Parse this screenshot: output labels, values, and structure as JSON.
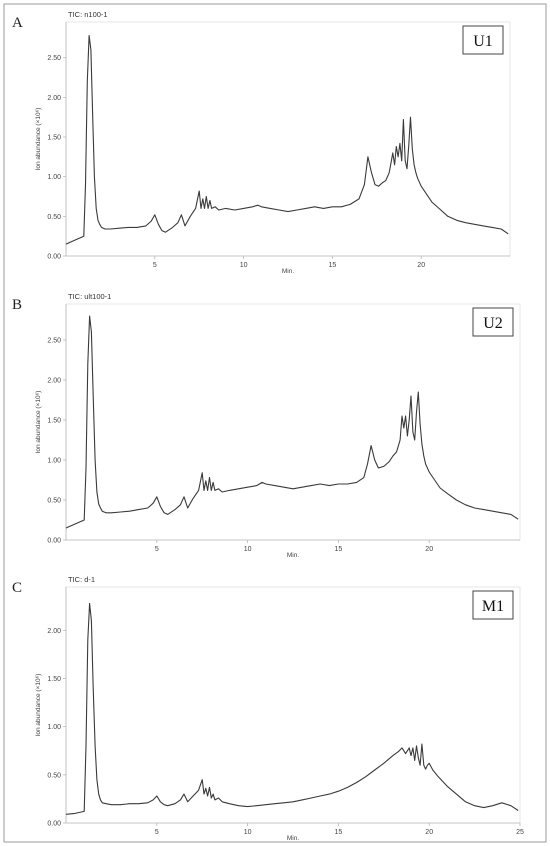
{
  "chart_data": [
    {
      "type": "line",
      "panel_letter": "A",
      "title": "TIC: n100-1",
      "sample_label": "U1",
      "xlabel": "Min.",
      "ylabel": "Ion abundance (×10⁶)",
      "xlim": [
        0,
        25
      ],
      "ylim": [
        0,
        2.95
      ],
      "xticks": [
        5,
        10,
        15,
        20
      ],
      "xtick_labels": [
        "5",
        "10",
        "15",
        "20"
      ],
      "yticks": [
        0,
        0.5,
        1.0,
        1.5,
        2.0,
        2.5
      ],
      "ytick_labels": [
        "0.00",
        "0.50",
        "1.00",
        "1.50",
        "2.00",
        "2.50"
      ],
      "series": [
        {
          "x": [
            0,
            0.5,
            1.0,
            1.1,
            1.2,
            1.3,
            1.4,
            1.5,
            1.6,
            1.7,
            1.8,
            1.9,
            2.0,
            2.2,
            2.5,
            3.0,
            3.5,
            4.0,
            4.5,
            4.8,
            5.0,
            5.2,
            5.4,
            5.6,
            6.0,
            6.3,
            6.5,
            6.7,
            7.0,
            7.3,
            7.5,
            7.6,
            7.7,
            7.8,
            7.9,
            8.0,
            8.1,
            8.2,
            8.4,
            8.6,
            9.0,
            9.5,
            10.0,
            10.5,
            10.8,
            11.0,
            11.5,
            12.0,
            12.5,
            13.0,
            13.5,
            14.0,
            14.5,
            15.0,
            15.5,
            16.0,
            16.5,
            16.8,
            17.0,
            17.2,
            17.4,
            17.6,
            17.8,
            18.0,
            18.2,
            18.4,
            18.5,
            18.6,
            18.7,
            18.8,
            18.9,
            19.0,
            19.1,
            19.2,
            19.3,
            19.4,
            19.5,
            19.6,
            19.7,
            19.8,
            20.0,
            20.3,
            20.6,
            21.0,
            21.5,
            22.0,
            22.5,
            23.0,
            23.5,
            24.0,
            24.5,
            24.9
          ],
          "y": [
            0.15,
            0.2,
            0.25,
            0.9,
            2.2,
            2.78,
            2.6,
            1.8,
            1.0,
            0.6,
            0.45,
            0.4,
            0.36,
            0.34,
            0.34,
            0.35,
            0.36,
            0.36,
            0.38,
            0.44,
            0.52,
            0.4,
            0.32,
            0.3,
            0.36,
            0.42,
            0.52,
            0.38,
            0.5,
            0.6,
            0.82,
            0.6,
            0.72,
            0.6,
            0.75,
            0.6,
            0.7,
            0.6,
            0.62,
            0.58,
            0.6,
            0.58,
            0.6,
            0.62,
            0.64,
            0.62,
            0.6,
            0.58,
            0.56,
            0.58,
            0.6,
            0.62,
            0.6,
            0.62,
            0.62,
            0.65,
            0.72,
            0.9,
            1.25,
            1.05,
            0.9,
            0.88,
            0.92,
            0.95,
            1.05,
            1.3,
            1.15,
            1.38,
            1.25,
            1.42,
            1.2,
            1.72,
            1.2,
            1.1,
            1.4,
            1.75,
            1.35,
            1.15,
            1.05,
            0.98,
            0.88,
            0.78,
            0.68,
            0.6,
            0.5,
            0.45,
            0.42,
            0.4,
            0.38,
            0.36,
            0.34,
            0.28
          ]
        }
      ]
    },
    {
      "type": "line",
      "panel_letter": "B",
      "title": "TIC: ult100-1",
      "sample_label": "U2",
      "xlabel": "Min.",
      "ylabel": "Ion abundance (×10⁶)",
      "xlim": [
        0,
        25
      ],
      "ylim": [
        0,
        2.95
      ],
      "xticks": [
        5,
        10,
        15,
        20
      ],
      "xtick_labels": [
        "5",
        "10",
        "15",
        "20"
      ],
      "yticks": [
        0,
        0.5,
        1.0,
        1.5,
        2.0,
        2.5
      ],
      "ytick_labels": [
        "0.00",
        "0.50",
        "1.00",
        "1.50",
        "2.00",
        "2.50"
      ],
      "series": [
        {
          "x": [
            0,
            0.5,
            1.0,
            1.1,
            1.2,
            1.3,
            1.4,
            1.5,
            1.6,
            1.7,
            1.8,
            1.9,
            2.0,
            2.2,
            2.5,
            3.0,
            3.5,
            4.0,
            4.5,
            4.8,
            5.0,
            5.2,
            5.4,
            5.6,
            6.0,
            6.3,
            6.5,
            6.7,
            7.0,
            7.3,
            7.5,
            7.6,
            7.7,
            7.8,
            7.9,
            8.0,
            8.1,
            8.2,
            8.4,
            8.6,
            9.0,
            9.5,
            10.0,
            10.5,
            10.8,
            11.0,
            11.5,
            12.0,
            12.5,
            13.0,
            13.5,
            14.0,
            14.5,
            15.0,
            15.5,
            16.0,
            16.4,
            16.6,
            16.8,
            17.0,
            17.2,
            17.5,
            17.8,
            18.0,
            18.2,
            18.4,
            18.5,
            18.6,
            18.7,
            18.8,
            18.9,
            19.0,
            19.1,
            19.2,
            19.3,
            19.4,
            19.5,
            19.6,
            19.7,
            19.8,
            20.0,
            20.3,
            20.6,
            21.0,
            21.5,
            22.0,
            22.5,
            23.0,
            23.5,
            24.0,
            24.5,
            24.9
          ],
          "y": [
            0.15,
            0.2,
            0.25,
            0.9,
            2.2,
            2.8,
            2.6,
            1.8,
            1.0,
            0.6,
            0.45,
            0.4,
            0.36,
            0.34,
            0.34,
            0.35,
            0.36,
            0.38,
            0.4,
            0.46,
            0.54,
            0.42,
            0.34,
            0.32,
            0.38,
            0.44,
            0.54,
            0.4,
            0.52,
            0.62,
            0.84,
            0.62,
            0.74,
            0.62,
            0.78,
            0.62,
            0.72,
            0.62,
            0.64,
            0.6,
            0.62,
            0.64,
            0.66,
            0.68,
            0.72,
            0.7,
            0.68,
            0.66,
            0.64,
            0.66,
            0.68,
            0.7,
            0.68,
            0.7,
            0.7,
            0.72,
            0.78,
            0.95,
            1.18,
            1.0,
            0.9,
            0.92,
            0.98,
            1.05,
            1.1,
            1.25,
            1.55,
            1.4,
            1.55,
            1.3,
            1.5,
            1.8,
            1.35,
            1.25,
            1.6,
            1.85,
            1.45,
            1.2,
            1.05,
            0.95,
            0.85,
            0.75,
            0.65,
            0.58,
            0.5,
            0.44,
            0.4,
            0.38,
            0.36,
            0.34,
            0.32,
            0.26
          ]
        }
      ]
    },
    {
      "type": "line",
      "panel_letter": "C",
      "title": "TIC: d-1",
      "sample_label": "M1",
      "xlabel": "Min.",
      "ylabel": "Ion abundance (×10⁶)",
      "xlim": [
        0,
        25
      ],
      "ylim": [
        0,
        2.45
      ],
      "xticks": [
        5,
        10,
        15,
        20,
        25
      ],
      "xtick_labels": [
        "5",
        "10",
        "15",
        "20",
        "25"
      ],
      "yticks": [
        0,
        0.5,
        1.0,
        1.5,
        2.0
      ],
      "ytick_labels": [
        "0.00",
        "0.50",
        "1.00",
        "1.50",
        "2.00"
      ],
      "series": [
        {
          "x": [
            0,
            0.5,
            1.0,
            1.1,
            1.2,
            1.3,
            1.4,
            1.5,
            1.6,
            1.7,
            1.8,
            1.9,
            2.0,
            2.2,
            2.5,
            3.0,
            3.5,
            4.0,
            4.5,
            4.8,
            5.0,
            5.2,
            5.4,
            5.6,
            6.0,
            6.3,
            6.5,
            6.7,
            7.0,
            7.3,
            7.5,
            7.6,
            7.7,
            7.8,
            7.9,
            8.0,
            8.1,
            8.2,
            8.4,
            8.6,
            9.0,
            9.5,
            10.0,
            10.5,
            11.0,
            11.5,
            12.0,
            12.5,
            13.0,
            13.5,
            14.0,
            14.5,
            15.0,
            15.5,
            16.0,
            16.5,
            17.0,
            17.5,
            18.0,
            18.3,
            18.5,
            18.7,
            18.9,
            19.0,
            19.1,
            19.2,
            19.3,
            19.4,
            19.5,
            19.6,
            19.7,
            19.8,
            19.9,
            20.0,
            20.2,
            20.5,
            21.0,
            21.5,
            22.0,
            22.5,
            23.0,
            23.5,
            24.0,
            24.5,
            24.9
          ],
          "y": [
            0.09,
            0.1,
            0.12,
            0.8,
            1.9,
            2.28,
            2.1,
            1.4,
            0.8,
            0.45,
            0.3,
            0.24,
            0.21,
            0.2,
            0.19,
            0.19,
            0.2,
            0.2,
            0.21,
            0.24,
            0.28,
            0.22,
            0.19,
            0.18,
            0.2,
            0.24,
            0.3,
            0.22,
            0.28,
            0.34,
            0.45,
            0.3,
            0.36,
            0.28,
            0.37,
            0.26,
            0.3,
            0.24,
            0.26,
            0.22,
            0.2,
            0.18,
            0.17,
            0.18,
            0.19,
            0.2,
            0.21,
            0.22,
            0.24,
            0.26,
            0.28,
            0.3,
            0.33,
            0.37,
            0.42,
            0.48,
            0.55,
            0.62,
            0.7,
            0.74,
            0.78,
            0.72,
            0.78,
            0.7,
            0.78,
            0.65,
            0.8,
            0.68,
            0.6,
            0.82,
            0.6,
            0.56,
            0.6,
            0.62,
            0.55,
            0.48,
            0.38,
            0.3,
            0.22,
            0.18,
            0.16,
            0.18,
            0.21,
            0.18,
            0.13
          ]
        }
      ]
    }
  ]
}
